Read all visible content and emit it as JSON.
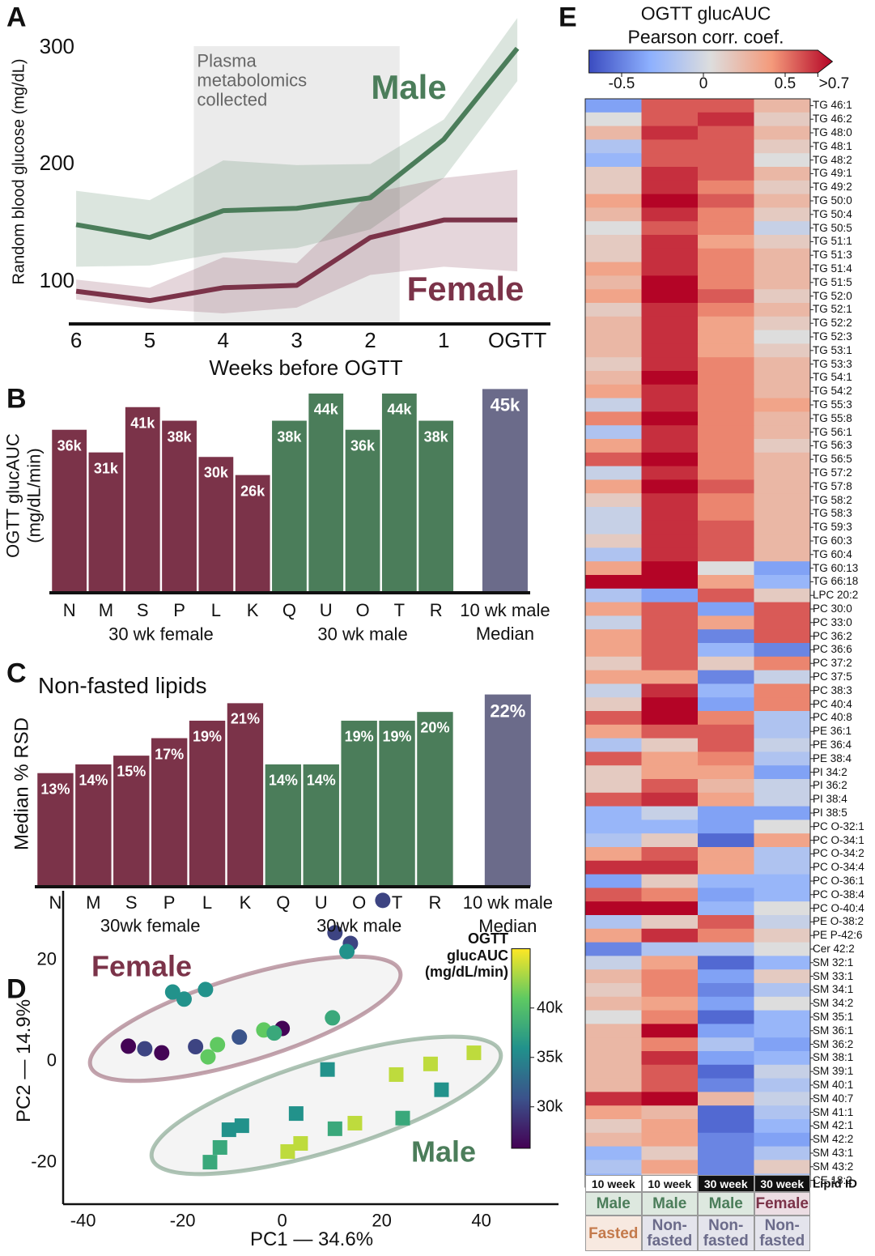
{
  "chart_data": [
    {
      "panel": "A",
      "type": "line",
      "ylabel": "Random blood glucose (mg/dL)",
      "xlabel": "Weeks before OGTT",
      "x": [
        6,
        5,
        4,
        3,
        2,
        1,
        0
      ],
      "xlim": [
        6.1,
        -0.45
      ],
      "xticks": [
        6,
        5,
        4,
        3,
        2,
        1,
        {
          "value": 0,
          "label": "OGTT"
        }
      ],
      "ylim": [
        63,
        330
      ],
      "yticks": [
        100,
        200,
        300
      ],
      "shade": {
        "x": [
          4.4,
          1.6
        ],
        "label": "Plasma\nmetabolomics\ncollected"
      },
      "series": [
        {
          "name": "Male",
          "color": "#4b7d5a",
          "values": [
            148,
            137,
            160,
            162,
            171,
            221,
            299
          ],
          "lower": [
            112,
            113,
            124,
            128,
            144,
            188,
            271
          ],
          "upper": [
            177,
            169,
            203,
            199,
            200,
            238,
            325
          ]
        },
        {
          "name": "Female",
          "color": "#7b3349",
          "values": [
            91,
            83,
            94,
            96,
            137,
            152,
            152
          ],
          "lower": [
            84,
            76,
            72,
            77,
            105,
            112,
            108
          ],
          "upper": [
            101,
            94,
            120,
            115,
            175,
            188,
            195
          ]
        }
      ]
    },
    {
      "panel": "B",
      "type": "bar",
      "ylabel": "OGTT glucAUC\n(mg/dL/min)",
      "categories": [
        "N",
        "M",
        "S",
        "P",
        "L",
        "K",
        "Q",
        "U",
        "O",
        "T",
        "R",
        "10 wk male\nMedian"
      ],
      "values": [
        36000,
        31000,
        41000,
        38000,
        30000,
        26000,
        38000,
        44000,
        36000,
        44000,
        38000,
        45000
      ],
      "value_labels": [
        "36k",
        "31k",
        "41k",
        "38k",
        "30k",
        "26k",
        "38k",
        "44k",
        "36k",
        "44k",
        "38k",
        "45k"
      ],
      "colors": [
        "#7b3349",
        "#7b3349",
        "#7b3349",
        "#7b3349",
        "#7b3349",
        "#7b3349",
        "#4b7d5a",
        "#4b7d5a",
        "#4b7d5a",
        "#4b7d5a",
        "#4b7d5a",
        "#6b6b8a"
      ],
      "groups": [
        {
          "label": "30 wk female",
          "count": 6
        },
        {
          "label": "30 wk male",
          "count": 5
        }
      ],
      "ylim": [
        0,
        46500
      ]
    },
    {
      "panel": "C",
      "type": "bar",
      "title": "Non-fasted lipids",
      "ylabel": "Median % RSD",
      "categories": [
        "N",
        "M",
        "S",
        "P",
        "L",
        "K",
        "Q",
        "U",
        "O",
        "T",
        "R",
        "10 wk male\nMedian"
      ],
      "values": [
        13,
        14,
        15,
        17,
        19,
        21,
        14,
        14,
        19,
        19,
        20,
        22
      ],
      "value_labels": [
        "13%",
        "14%",
        "15%",
        "17%",
        "19%",
        "21%",
        "14%",
        "14%",
        "19%",
        "19%",
        "20%",
        "22%"
      ],
      "colors": [
        "#7b3349",
        "#7b3349",
        "#7b3349",
        "#7b3349",
        "#7b3349",
        "#7b3349",
        "#4b7d5a",
        "#4b7d5a",
        "#4b7d5a",
        "#4b7d5a",
        "#4b7d5a",
        "#6b6b8a"
      ],
      "groups": [
        {
          "label": "30wk female",
          "count": 6
        },
        {
          "label": "30wk male",
          "count": 5
        }
      ],
      "ylim": [
        0,
        24
      ]
    },
    {
      "panel": "D",
      "type": "scatter",
      "xlabel": "PC1 — 34.6%",
      "ylabel": "PC2 — 14.9%",
      "xlim": [
        -44,
        55.5
      ],
      "xticks": [
        -40,
        -20,
        0,
        20,
        40
      ],
      "ylim": [
        -28.5,
        33.4
      ],
      "yticks": [
        -20,
        0,
        20
      ],
      "colormap": "viridis",
      "clim": [
        25800,
        46000
      ],
      "colorbar_title": "OGTT\nglucAUC\n(mg/dL/min)",
      "cticks": [
        {
          "value": 30000,
          "label": "30k"
        },
        {
          "value": 35000,
          "label": "35k"
        },
        {
          "value": 40000,
          "label": "40k"
        }
      ],
      "series": [
        {
          "name": "Female",
          "color": "#7b3349",
          "marker": "circle",
          "x": [
            20.2,
            10.6,
            13.7,
            13.0,
            -22.0,
            -19.7,
            -15.4,
            10.1,
            -30.9,
            -27.6,
            -24.2,
            -17.4,
            -13.0,
            -14.9,
            -8.6,
            -3.7,
            0,
            -1.6
          ],
          "y": [
            31.5,
            25.1,
            23.0,
            21.4,
            13.4,
            12.0,
            13.9,
            8.3,
            2.7,
            2.2,
            1.4,
            2.6,
            3.0,
            0.6,
            4.5,
            5.9,
            6.2,
            5.3
          ],
          "c": [
            30000,
            30000,
            30000,
            36000,
            36000,
            36000,
            36000,
            38000,
            26000,
            30000,
            26000,
            30000,
            41000,
            41000,
            31000,
            41000,
            26000,
            38000
          ]
        },
        {
          "name": "Male",
          "color": "#4b7d5a",
          "marker": "square",
          "x": [
            38.5,
            29.8,
            22.9,
            9.1,
            32.0,
            24.2,
            2.8,
            14.6,
            10.6,
            -8.1,
            -10.7,
            -12.5,
            -14.5,
            3.7,
            1.1
          ],
          "y": [
            1.4,
            -0.8,
            -2.9,
            -1.9,
            -5.9,
            -11.5,
            -10.6,
            -12.5,
            -13.6,
            -13.0,
            -13.8,
            -17.3,
            -20.2,
            -16.5,
            -18.1
          ],
          "c": [
            44000,
            44000,
            44000,
            36000,
            36000,
            38000,
            36000,
            44000,
            38000,
            36000,
            36000,
            38000,
            38000,
            44000,
            44000
          ]
        }
      ]
    },
    {
      "panel": "E",
      "type": "heatmap",
      "title": "OGTT glucAUC\nPearson corr. coef.",
      "colormap": "coolwarm",
      "clim": [
        -0.7,
        0.7
      ],
      "cticks": [
        -0.5,
        0,
        0.5,
        {
          "value": 0.7,
          "label": ">0.7"
        }
      ],
      "row_header": "Lipid ID",
      "columns": [
        {
          "age": "10 week",
          "sex": "Male",
          "state": "Fasted"
        },
        {
          "age": "10 week",
          "sex": "Male",
          "state": "Non-fasted"
        },
        {
          "age": "30 week",
          "sex": "Male",
          "state": "Non-fasted"
        },
        {
          "age": "30 week",
          "sex": "Female",
          "state": "Non-fasted"
        }
      ],
      "rows": [
        "TG 46:1",
        "TG 46:2",
        "TG 48:0",
        "TG 48:1",
        "TG 48:2",
        "TG 49:1",
        "TG 49:2",
        "TG 50:0",
        "TG 50:4",
        "TG 50:5",
        "TG 51:1",
        "TG 51:3",
        "TG 51:4",
        "TG 51:5",
        "TG 52:0",
        "TG 52:1",
        "TG 52:2",
        "TG 52:3",
        "TG 53:1",
        "TG 53:3",
        "TG 54:1",
        "TG 54:2",
        "TG 55:3",
        "TG 55:8",
        "TG 56:1",
        "TG 56:3",
        "TG 56:5",
        "TG 57:2",
        "TG 57:8",
        "TG 58:2",
        "TG 58:3",
        "TG 59:3",
        "TG 60:3",
        "TG 60:4",
        "TG 60:13",
        "TG 66:18",
        "LPC 20:2",
        "PC 30:0",
        "PC 33:0",
        "PC 36:2",
        "PC 36:6",
        "PC 37:2",
        "PC 37:5",
        "PC 38:3",
        "PC 40:4",
        "PC 40:8",
        "PE 36:1",
        "PE 36:4",
        "PE 38:4",
        "PI 34:2",
        "PI 36:2",
        "PI 38:4",
        "PI 38:5",
        "PC O-32:1",
        "PC O-34:1",
        "PC O-34:2",
        "PC O-34:4",
        "PC O-36:1",
        "PC O-38:4",
        "PC O-40:4",
        "PE O-38:2",
        "PE P-42:6",
        "Cer 42:2",
        "SM 32:1",
        "SM 33:1",
        "SM 34:1",
        "SM 34:2",
        "SM 35:1",
        "SM 36:1",
        "SM 36:2",
        "SM 38:1",
        "SM 39:1",
        "SM 40:1",
        "SM 40:7",
        "SM 41:1",
        "SM 42:1",
        "SM 42:2",
        "SM 43:1",
        "SM 43:2",
        "CE 18:2"
      ],
      "values": [
        [
          -0.4,
          0.5,
          0.5,
          0.2
        ],
        [
          0.0,
          0.5,
          0.6,
          0.1
        ],
        [
          0.2,
          0.6,
          0.5,
          0.2
        ],
        [
          -0.2,
          0.5,
          0.5,
          0.1
        ],
        [
          -0.3,
          0.5,
          0.5,
          0.0
        ],
        [
          0.1,
          0.6,
          0.5,
          0.2
        ],
        [
          0.1,
          0.6,
          0.4,
          0.1
        ],
        [
          0.3,
          0.7,
          0.5,
          0.2
        ],
        [
          0.2,
          0.6,
          0.4,
          0.1
        ],
        [
          0.0,
          0.5,
          0.4,
          -0.1
        ],
        [
          0.1,
          0.6,
          0.3,
          0.1
        ],
        [
          0.1,
          0.6,
          0.4,
          0.2
        ],
        [
          0.3,
          0.6,
          0.4,
          0.2
        ],
        [
          0.2,
          0.7,
          0.4,
          0.2
        ],
        [
          0.3,
          0.7,
          0.5,
          0.1
        ],
        [
          0.1,
          0.6,
          0.4,
          0.2
        ],
        [
          0.2,
          0.6,
          0.3,
          0.1
        ],
        [
          0.2,
          0.6,
          0.3,
          0.0
        ],
        [
          0.2,
          0.6,
          0.3,
          0.1
        ],
        [
          0.1,
          0.6,
          0.4,
          0.2
        ],
        [
          0.2,
          0.7,
          0.4,
          0.2
        ],
        [
          0.3,
          0.6,
          0.4,
          0.2
        ],
        [
          -0.1,
          0.6,
          0.4,
          0.3
        ],
        [
          0.4,
          0.7,
          0.4,
          0.2
        ],
        [
          -0.2,
          0.6,
          0.4,
          0.2
        ],
        [
          0.3,
          0.6,
          0.4,
          0.1
        ],
        [
          0.5,
          0.7,
          0.4,
          0.2
        ],
        [
          -0.1,
          0.6,
          0.4,
          0.2
        ],
        [
          0.3,
          0.7,
          0.5,
          0.2
        ],
        [
          0.1,
          0.6,
          0.4,
          0.2
        ],
        [
          -0.1,
          0.6,
          0.4,
          0.2
        ],
        [
          -0.1,
          0.6,
          0.5,
          0.2
        ],
        [
          0.1,
          0.6,
          0.5,
          0.2
        ],
        [
          -0.2,
          0.6,
          0.5,
          0.2
        ],
        [
          0.3,
          0.7,
          0.0,
          -0.4
        ],
        [
          0.7,
          0.7,
          0.3,
          -0.3
        ],
        [
          -0.2,
          -0.4,
          0.5,
          0.1
        ],
        [
          0.3,
          0.5,
          -0.4,
          0.5
        ],
        [
          -0.1,
          0.5,
          0.3,
          0.5
        ],
        [
          0.3,
          0.5,
          -0.5,
          0.5
        ],
        [
          0.3,
          0.5,
          -0.3,
          -0.5
        ],
        [
          0.1,
          0.5,
          0.1,
          0.4
        ],
        [
          0.3,
          0.3,
          -0.5,
          -0.1
        ],
        [
          -0.1,
          0.6,
          -0.3,
          0.4
        ],
        [
          0.1,
          0.7,
          -0.4,
          0.4
        ],
        [
          0.5,
          0.7,
          0.4,
          -0.2
        ],
        [
          0.3,
          0.5,
          0.5,
          -0.2
        ],
        [
          -0.2,
          0.1,
          0.5,
          -0.1
        ],
        [
          0.5,
          0.3,
          0.4,
          -0.2
        ],
        [
          0.1,
          0.3,
          0.3,
          -0.4
        ],
        [
          0.1,
          0.5,
          0.2,
          -0.1
        ],
        [
          0.5,
          0.6,
          0.3,
          -0.1
        ],
        [
          -0.3,
          -0.1,
          -0.4,
          -0.4
        ],
        [
          -0.3,
          -0.3,
          -0.4,
          0.0
        ],
        [
          -0.2,
          0.1,
          -0.6,
          0.3
        ],
        [
          0.3,
          0.5,
          0.3,
          -0.2
        ],
        [
          0.6,
          0.6,
          0.3,
          -0.2
        ],
        [
          -0.4,
          0.1,
          -0.3,
          -0.3
        ],
        [
          0.5,
          0.4,
          -0.4,
          -0.3
        ],
        [
          0.7,
          0.7,
          -0.3,
          0.0
        ],
        [
          -0.2,
          0.1,
          0.5,
          -0.1
        ],
        [
          0.3,
          0.6,
          0.4,
          0.1
        ],
        [
          -0.5,
          -0.2,
          -0.2,
          0.0
        ],
        [
          -0.1,
          0.3,
          -0.6,
          -0.3
        ],
        [
          0.2,
          0.4,
          -0.4,
          0.1
        ],
        [
          0.1,
          0.4,
          -0.5,
          -0.2
        ],
        [
          0.2,
          0.3,
          -0.4,
          0.0
        ],
        [
          0.0,
          0.4,
          -0.6,
          -0.3
        ],
        [
          0.2,
          0.7,
          -0.4,
          -0.3
        ],
        [
          0.2,
          0.4,
          -0.2,
          -0.4
        ],
        [
          0.2,
          0.6,
          -0.4,
          -0.3
        ],
        [
          0.2,
          0.5,
          -0.6,
          -0.1
        ],
        [
          0.2,
          0.5,
          -0.5,
          -0.2
        ],
        [
          0.6,
          0.7,
          0.2,
          -0.1
        ],
        [
          0.3,
          0.2,
          -0.6,
          -0.2
        ],
        [
          0.1,
          0.3,
          -0.6,
          -0.3
        ],
        [
          0.2,
          0.3,
          -0.5,
          -0.4
        ],
        [
          -0.3,
          0.1,
          -0.5,
          -0.2
        ],
        [
          -0.2,
          0.3,
          -0.5,
          0.1
        ],
        [
          -0.3,
          0.1,
          -0.5,
          -0.2
        ]
      ]
    }
  ]
}
